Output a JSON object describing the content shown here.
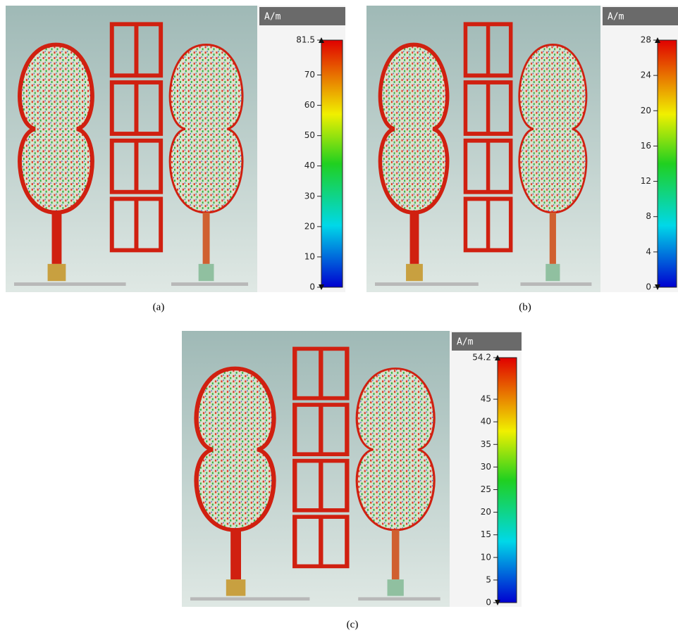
{
  "panels": [
    {
      "caption": "(a)",
      "unit": "A/m",
      "colorbar": {
        "min": 0,
        "max": 81.5,
        "ticks": [
          0,
          10,
          20,
          30,
          40,
          50,
          60,
          70,
          81.5
        ]
      }
    },
    {
      "caption": "(b)",
      "unit": "A/m",
      "colorbar": {
        "min": 0,
        "max": 28,
        "ticks": [
          0,
          4,
          8,
          12,
          16,
          20,
          24,
          28
        ]
      }
    },
    {
      "caption": "(c)",
      "unit": "A/m",
      "colorbar": {
        "min": 0,
        "max": 54.2,
        "ticks": [
          0,
          5,
          10,
          15,
          20,
          25,
          30,
          35,
          40,
          45,
          54.2
        ]
      }
    }
  ]
}
